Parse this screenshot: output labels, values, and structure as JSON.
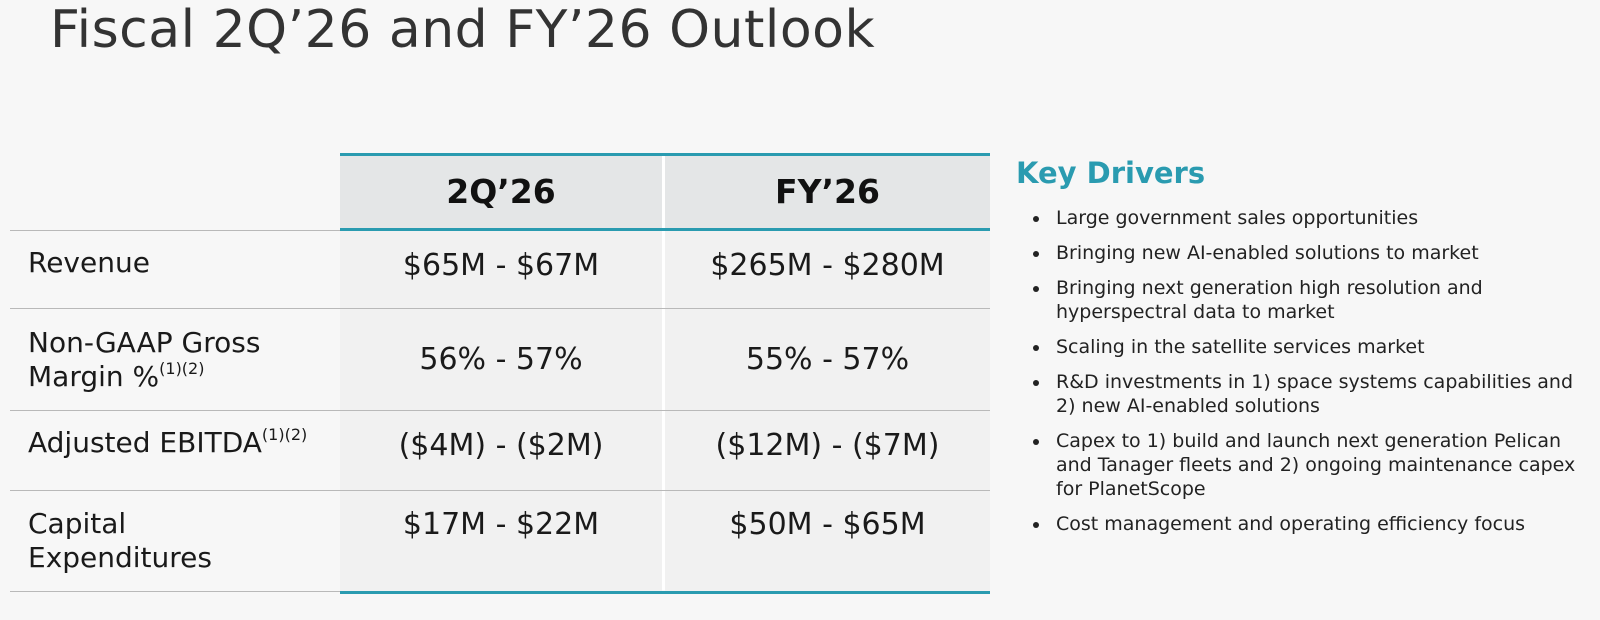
{
  "title": "Fiscal 2Q’26 and FY’26 Outlook",
  "table": {
    "columns": [
      "2Q’26",
      "FY’26"
    ],
    "rows": [
      {
        "label": "Revenue",
        "label_line2": "",
        "sup": "",
        "values": [
          "$65M - $67M",
          "$265M - $280M"
        ]
      },
      {
        "label": "Non-GAAP Gross",
        "label_line2": "Margin %",
        "sup": "(1)(2)",
        "values": [
          "56% - 57%",
          "55% - 57%"
        ]
      },
      {
        "label": "Adjusted EBITDA",
        "label_line2": "",
        "sup": "(1)(2)",
        "values": [
          "($4M) - ($2M)",
          "($12M) - ($7M)"
        ]
      },
      {
        "label": "Capital",
        "label_line2": "Expenditures",
        "sup": "",
        "values": [
          "$17M - $22M",
          "$50M - $65M"
        ]
      }
    ]
  },
  "drivers": {
    "title": "Key Drivers",
    "items": [
      "Large government sales opportunities",
      "Bringing new AI-enabled solutions to market",
      "Bringing next generation high resolution and hyperspectral data to market",
      "Scaling in the satellite services market",
      "R&D investments in 1) space systems capabilities and 2) new AI-enabled solutions",
      "Capex to 1) build and launch next generation Pelican and Tanager fleets and 2) ongoing maintenance capex for PlanetScope",
      "Cost management and operating efficiency focus"
    ]
  }
}
